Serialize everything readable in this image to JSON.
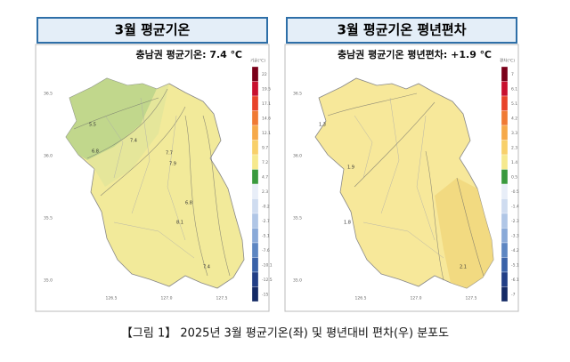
{
  "panels": [
    {
      "title": "3월 평균기온",
      "subtitle": "충남권 평균기온: 7.4 ℃",
      "legend_title": "기온(℃)",
      "legend_labels": [
        "22",
        "19.5",
        "17.1",
        "14.6",
        "12.1",
        "9.7",
        "7.2",
        "4.7",
        "2.3",
        "-0.2",
        "-2.7",
        "-5.1",
        "-7.6",
        "-10.1",
        "-12.5",
        "-15"
      ],
      "legend_colors": [
        "#7a0019",
        "#c8102e",
        "#e8432a",
        "#f07a34",
        "#f6a94a",
        "#f8d06a",
        "#f6e98e",
        "#3a9a3e",
        "#e8eef8",
        "#cfdcf0",
        "#b0c6e6",
        "#8aaad8",
        "#5d86c2",
        "#3a62a8",
        "#223f86",
        "#142a66"
      ],
      "contour_labels": [
        "5.5",
        "6.8",
        "7.4",
        "7.7",
        "7.9",
        "6.8",
        "8.1",
        "7.4"
      ],
      "x_ticks": [
        "126.5",
        "127.0",
        "127.5"
      ],
      "y_ticks": [
        "36.5",
        "36.0",
        "35.5",
        "35.0"
      ]
    },
    {
      "title": "3월 평균기온 평년편차",
      "subtitle": "충남권 평균기온 평년편차: +1.9 ℃",
      "legend_title": "편차(℃)",
      "legend_labels": [
        "7",
        "6.1",
        "5.1",
        "4.2",
        "3.3",
        "2.3",
        "1.4",
        "0.5",
        "-0.5",
        "-1.4",
        "-2.3",
        "-3.3",
        "-4.2",
        "-5.1",
        "-6.1",
        "-7"
      ],
      "legend_colors": [
        "#7a0019",
        "#c8102e",
        "#e8432a",
        "#f07a34",
        "#f6a94a",
        "#f8d06a",
        "#f6e98e",
        "#3a9a3e",
        "#e8eef8",
        "#cfdcf0",
        "#b0c6e6",
        "#8aaad8",
        "#5d86c2",
        "#3a62a8",
        "#223f86",
        "#142a66"
      ],
      "contour_labels": [
        "1.3",
        "1.9",
        "1.8",
        "2.1"
      ],
      "x_ticks": [
        "126.5",
        "127.0",
        "127.5"
      ],
      "y_ticks": [
        "36.5",
        "36.0",
        "35.5",
        "35.0"
      ]
    }
  ],
  "caption": "【그림 1】 2025년 3월 평균기온(좌) 및 평년대비 편차(우) 분포도"
}
